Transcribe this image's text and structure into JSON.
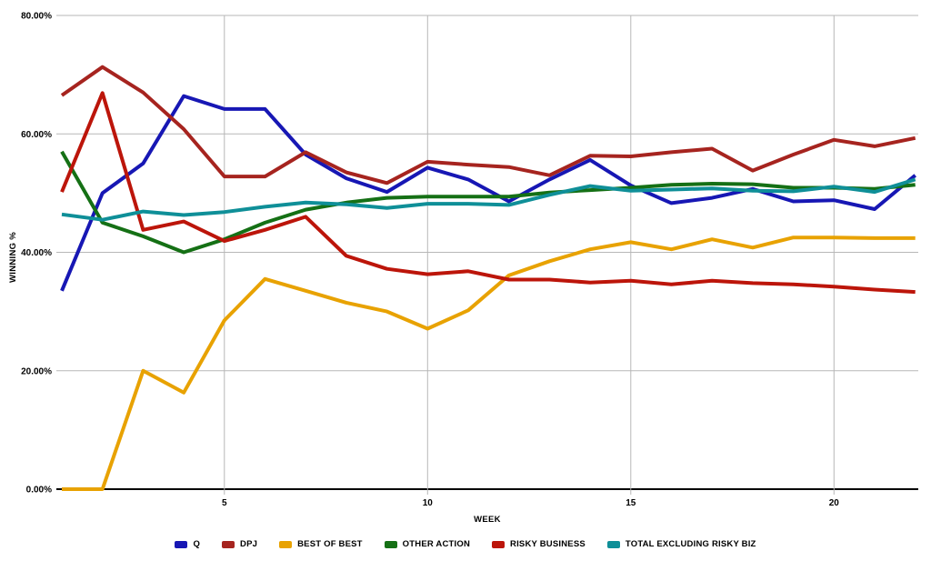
{
  "chart_data": {
    "type": "line",
    "title": "",
    "xlabel": "WEEK",
    "ylabel": "WINNING %",
    "x": [
      1,
      2,
      3,
      4,
      5,
      6,
      7,
      8,
      9,
      10,
      11,
      12,
      13,
      14,
      15,
      16,
      17,
      18,
      19,
      20,
      21,
      22
    ],
    "xlim": [
      1,
      22
    ],
    "ylim": [
      0,
      80
    ],
    "x_ticks": [
      5,
      10,
      15,
      20
    ],
    "y_ticks": [
      0,
      20,
      40,
      60,
      80
    ],
    "y_tick_labels": [
      "0.00%",
      "20.00%",
      "40.00%",
      "60.00%",
      "80.00%"
    ],
    "grid": true,
    "legend_position": "bottom",
    "gridline_color": "#b7b7b7",
    "baseline_color": "#000000",
    "series": [
      {
        "name": "Q",
        "color": "#1717b4",
        "values": [
          33.5,
          50.0,
          55.0,
          66.4,
          64.2,
          64.2,
          56.5,
          52.5,
          50.2,
          54.3,
          52.3,
          48.6,
          52.3,
          55.6,
          51.3,
          48.3,
          49.2,
          50.7,
          48.6,
          48.8,
          47.3,
          53.0
        ]
      },
      {
        "name": "DPJ",
        "color": "#a6241f",
        "values": [
          66.5,
          71.3,
          67.0,
          60.8,
          52.8,
          52.8,
          56.9,
          53.5,
          51.7,
          55.3,
          54.8,
          54.4,
          53.0,
          56.3,
          56.2,
          56.9,
          57.5,
          53.8,
          56.5,
          59.0,
          57.9,
          59.3
        ]
      },
      {
        "name": "BEST OF BEST",
        "color": "#e8a202",
        "values": [
          0.0,
          0.0,
          20.0,
          16.3,
          28.5,
          35.5,
          33.5,
          31.5,
          30.0,
          27.1,
          30.2,
          36.1,
          38.5,
          40.5,
          41.7,
          40.5,
          42.2,
          40.8,
          42.5,
          42.5,
          42.4,
          42.4
        ]
      },
      {
        "name": "OTHER ACTION",
        "color": "#157015",
        "values": [
          57.0,
          45.0,
          42.7,
          40.0,
          42.2,
          45.0,
          47.2,
          48.4,
          49.2,
          49.4,
          49.4,
          49.4,
          50.1,
          50.5,
          50.9,
          51.4,
          51.6,
          51.5,
          50.9,
          50.9,
          50.7,
          51.4
        ]
      },
      {
        "name": "RISKY BUSINESS",
        "color": "#bc150a",
        "values": [
          50.2,
          66.9,
          43.8,
          45.2,
          41.9,
          43.8,
          46.0,
          39.4,
          37.2,
          36.3,
          36.8,
          35.4,
          35.4,
          34.9,
          35.2,
          34.6,
          35.2,
          34.8,
          34.6,
          34.2,
          33.7,
          33.3
        ]
      },
      {
        "name": "TOTAL EXCLUDING RISKY BIZ",
        "color": "#0f8f98",
        "values": [
          46.4,
          45.5,
          46.9,
          46.3,
          46.8,
          47.7,
          48.4,
          48.1,
          47.5,
          48.2,
          48.2,
          48.0,
          49.7,
          51.2,
          50.4,
          50.6,
          50.8,
          50.4,
          50.3,
          51.1,
          50.2,
          52.3
        ]
      }
    ]
  }
}
